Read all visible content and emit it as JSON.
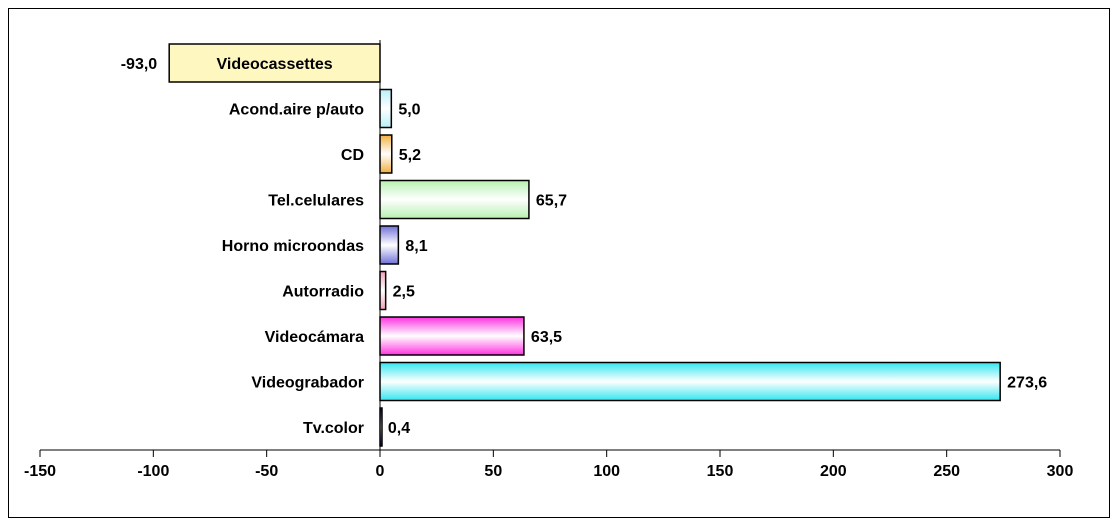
{
  "chart_data": {
    "type": "bar",
    "orientation": "horizontal",
    "categories": [
      "Tv.color",
      "Videograbador",
      "Videocámara",
      "Autorradio",
      "Horno microondas",
      "Tel.celulares",
      "CD",
      "Acond.aire p/auto",
      "Videocassettes"
    ],
    "values": [
      0.4,
      273.6,
      63.5,
      2.5,
      8.1,
      65.7,
      5.2,
      5.0,
      -93.0
    ],
    "value_labels": [
      "0,4",
      "273,6",
      "63,5",
      "2,5",
      "8,1",
      "65,7",
      "5,2",
      "5,0",
      "-93,0"
    ],
    "colors": [
      "#000080",
      "#33e6f0",
      "#ff33e0",
      "#f0a0b8",
      "#7070d8",
      "#b8f0b0",
      "#f0b040",
      "#b8f0f8",
      "#fff7c0"
    ],
    "xlim": [
      -150,
      300
    ],
    "xticks": [
      -150,
      -100,
      -50,
      0,
      50,
      100,
      150,
      200,
      250,
      300
    ],
    "xtick_labels": [
      "-150",
      "-100",
      "-50",
      "0",
      "50",
      "100",
      "150",
      "200",
      "250",
      "300"
    ],
    "grid": false,
    "legend": "none",
    "title": "",
    "xlabel": "",
    "ylabel": ""
  }
}
